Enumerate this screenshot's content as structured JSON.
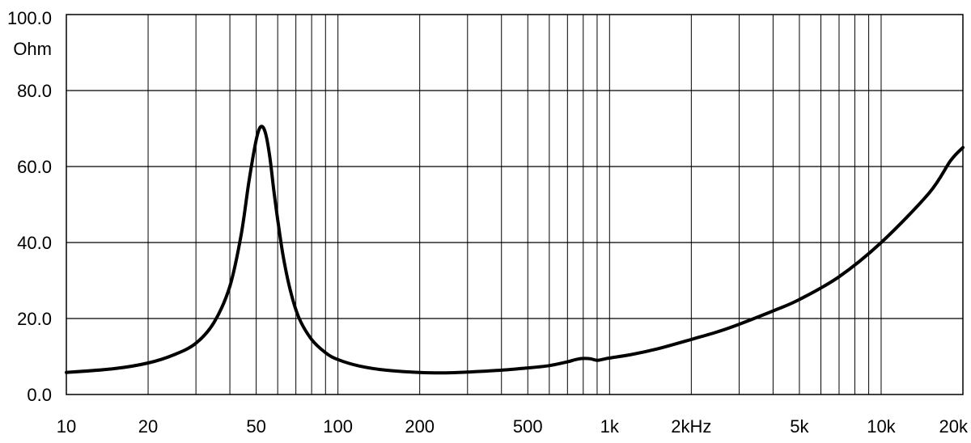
{
  "chart_data": {
    "type": "line",
    "title": "",
    "xlabel": "",
    "ylabel": "",
    "x_scale": "log",
    "xlim": [
      10,
      20000
    ],
    "ylim": [
      0,
      100
    ],
    "grid": true,
    "x_major_ticks": [
      {
        "value": 10,
        "label": "10"
      },
      {
        "value": 20,
        "label": "20"
      },
      {
        "value": 50,
        "label": "50"
      },
      {
        "value": 100,
        "label": "100"
      },
      {
        "value": 200,
        "label": "200"
      },
      {
        "value": 500,
        "label": "500"
      },
      {
        "value": 1000,
        "label": "1k"
      },
      {
        "value": 2000,
        "label": "2kHz"
      },
      {
        "value": 5000,
        "label": "5k"
      },
      {
        "value": 10000,
        "label": "10k"
      },
      {
        "value": 20000,
        "label": "20k"
      }
    ],
    "y_ticks": [
      {
        "value": 0,
        "label": "0.0"
      },
      {
        "value": 20,
        "label": "20.0"
      },
      {
        "value": 40,
        "label": "40.0"
      },
      {
        "value": 60,
        "label": "60.0"
      },
      {
        "value": 80,
        "label": "80.0"
      },
      {
        "value": 100,
        "label": "100.0"
      }
    ],
    "y_unit": "Ohm",
    "series": [
      {
        "color": "#000000",
        "points": [
          [
            10,
            5.8
          ],
          [
            15,
            6.8
          ],
          [
            20,
            8.3
          ],
          [
            25,
            10.5
          ],
          [
            30,
            13.5
          ],
          [
            35,
            19.0
          ],
          [
            40,
            28.5
          ],
          [
            44,
            42.0
          ],
          [
            47,
            56.0
          ],
          [
            50,
            67.0
          ],
          [
            52,
            70.5
          ],
          [
            54,
            69.0
          ],
          [
            56,
            63.0
          ],
          [
            58,
            54.0
          ],
          [
            60,
            46.0
          ],
          [
            63,
            36.0
          ],
          [
            67,
            27.0
          ],
          [
            72,
            20.0
          ],
          [
            80,
            14.5
          ],
          [
            90,
            11.0
          ],
          [
            100,
            9.2
          ],
          [
            120,
            7.5
          ],
          [
            150,
            6.4
          ],
          [
            200,
            5.8
          ],
          [
            250,
            5.7
          ],
          [
            300,
            5.9
          ],
          [
            400,
            6.4
          ],
          [
            500,
            7.0
          ],
          [
            600,
            7.6
          ],
          [
            700,
            8.6
          ],
          [
            750,
            9.2
          ],
          [
            800,
            9.5
          ],
          [
            850,
            9.4
          ],
          [
            900,
            9.0
          ],
          [
            950,
            9.3
          ],
          [
            1000,
            9.6
          ],
          [
            1200,
            10.5
          ],
          [
            1500,
            12.0
          ],
          [
            2000,
            14.5
          ],
          [
            2500,
            16.5
          ],
          [
            3000,
            18.5
          ],
          [
            4000,
            22.0
          ],
          [
            5000,
            25.0
          ],
          [
            7000,
            31.0
          ],
          [
            10000,
            40.0
          ],
          [
            15000,
            53.0
          ],
          [
            18000,
            61.5
          ],
          [
            20000,
            65.0
          ]
        ]
      }
    ]
  }
}
